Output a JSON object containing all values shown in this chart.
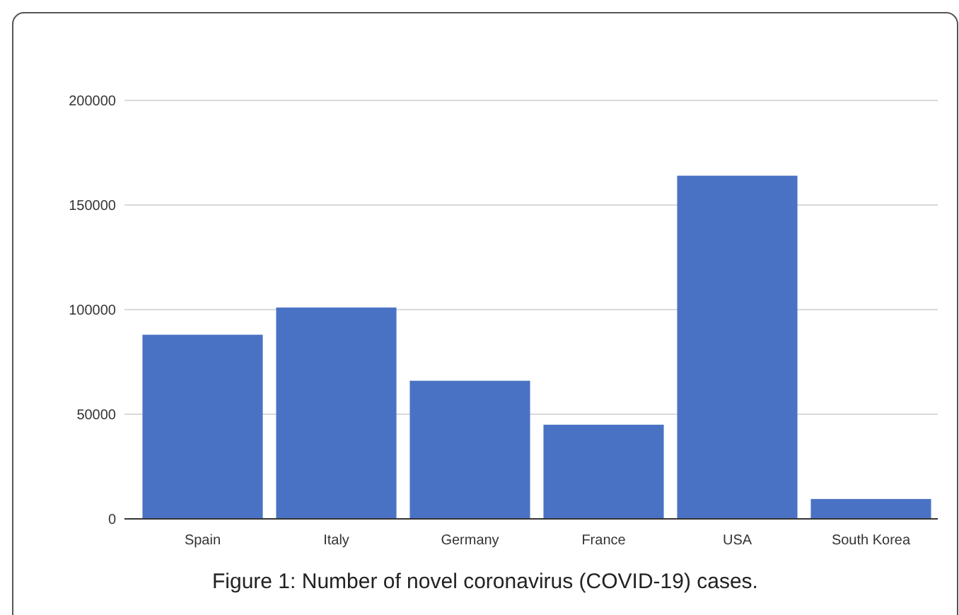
{
  "chart_data": {
    "type": "bar",
    "title": "Figure 1: Number of novel coronavirus (COVID-19) cases.",
    "categories": [
      "Spain",
      "Italy",
      "Germany",
      "France",
      "USA",
      "South Korea"
    ],
    "values": [
      88000,
      101000,
      66000,
      45000,
      164000,
      9500
    ],
    "color": "#4a72c4",
    "ylim": [
      0,
      200000
    ],
    "yticks": [
      0,
      50000,
      100000,
      150000,
      200000
    ],
    "grid": "y"
  }
}
